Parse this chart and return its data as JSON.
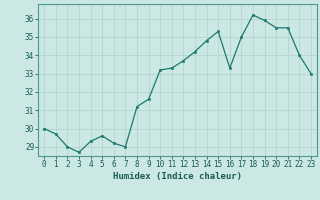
{
  "x": [
    0,
    1,
    2,
    3,
    4,
    5,
    6,
    7,
    8,
    9,
    10,
    11,
    12,
    13,
    14,
    15,
    16,
    17,
    18,
    19,
    20,
    21,
    22,
    23
  ],
  "y": [
    30.0,
    29.7,
    29.0,
    28.7,
    29.3,
    29.6,
    29.2,
    29.0,
    31.2,
    31.6,
    33.2,
    33.3,
    33.7,
    34.2,
    34.8,
    35.3,
    33.3,
    35.0,
    36.2,
    35.9,
    35.5,
    35.5,
    34.0,
    33.0
  ],
  "xlim": [
    -0.5,
    23.5
  ],
  "ylim": [
    28.5,
    36.8
  ],
  "yticks": [
    29,
    30,
    31,
    32,
    33,
    34,
    35,
    36
  ],
  "xticks": [
    0,
    1,
    2,
    3,
    4,
    5,
    6,
    7,
    8,
    9,
    10,
    11,
    12,
    13,
    14,
    15,
    16,
    17,
    18,
    19,
    20,
    21,
    22,
    23
  ],
  "xlabel": "Humidex (Indice chaleur)",
  "line_color": "#1a7a6e",
  "marker_color": "#1a7a6e",
  "bg_color": "#cce8e4",
  "grid_color": "#b8d4d0",
  "text_color": "#1a5c52",
  "axis_color": "#4a9a8e",
  "label_fontsize": 6.5,
  "tick_fontsize": 5.5
}
